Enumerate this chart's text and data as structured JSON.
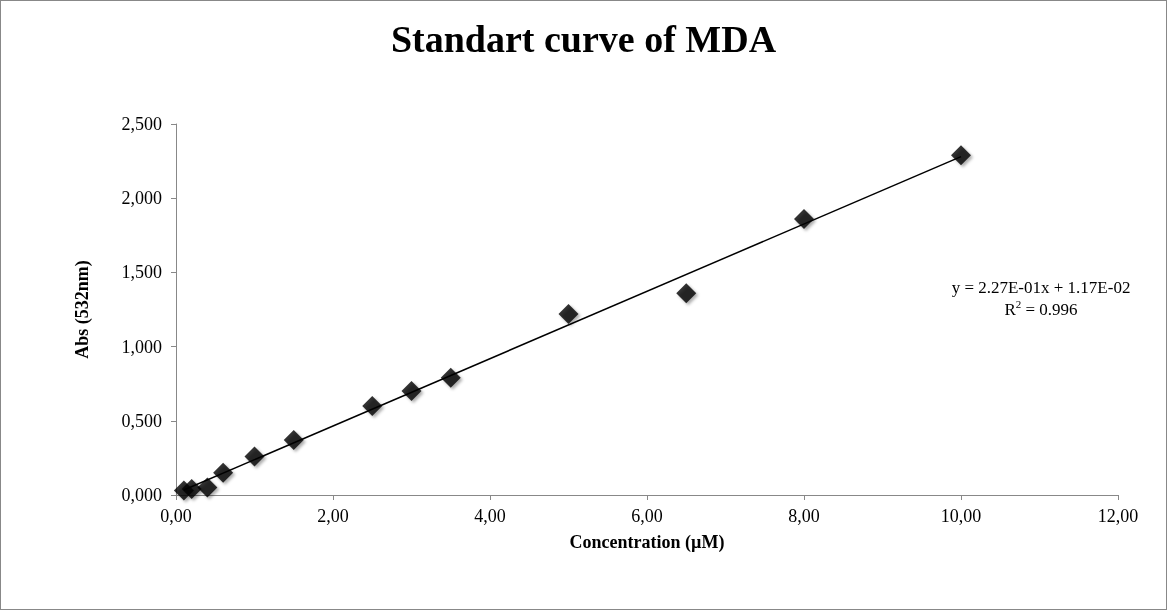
{
  "chart_data": {
    "type": "scatter",
    "title": "Standart curve of MDA",
    "xlabel": "Concentration (µM)",
    "ylabel": "Abs (532nm)",
    "annotations": [
      "y = 2.27E-01x + 1.17E-02",
      "R$^{2}$ = 0.996"
    ],
    "series": [
      {
        "color": "#000000",
        "marker": "diamond",
        "x": [
          0.1,
          0.2,
          0.4,
          0.6,
          1.0,
          1.5,
          2.5,
          3.0,
          3.5,
          5.0,
          6.5,
          8.0,
          10.0
        ],
        "values": [
          0.03,
          0.04,
          0.05,
          0.15,
          0.26,
          0.37,
          0.6,
          0.7,
          0.79,
          1.22,
          1.36,
          1.86,
          2.29
        ]
      },
      {
        "type": "line",
        "color": "#000000",
        "marker": "none",
        "x": [
          0.1,
          10.0
        ],
        "values": [
          0.034,
          2.28
        ]
      }
    ],
    "xlim": [
      0,
      12
    ],
    "xticks": [
      {
        "value": 0,
        "label": "0,00"
      },
      {
        "value": 2,
        "label": "2,00"
      },
      {
        "value": 4,
        "label": "4,00"
      },
      {
        "value": 6,
        "label": "6,00"
      },
      {
        "value": 8,
        "label": "8,00"
      },
      {
        "value": 10,
        "label": "10,00"
      },
      {
        "value": 12,
        "label": "12,00"
      }
    ],
    "ylim": [
      0,
      2.5
    ],
    "yticks": [
      {
        "value": 0,
        "label": "0,000"
      },
      {
        "value": 0.5,
        "label": "0,500"
      },
      {
        "value": 1,
        "label": "1,000"
      },
      {
        "value": 1.5,
        "label": "1,500"
      },
      {
        "value": 2,
        "label": "2,000"
      },
      {
        "value": 2.5,
        "label": "2,500"
      }
    ],
    "grid": false
  }
}
